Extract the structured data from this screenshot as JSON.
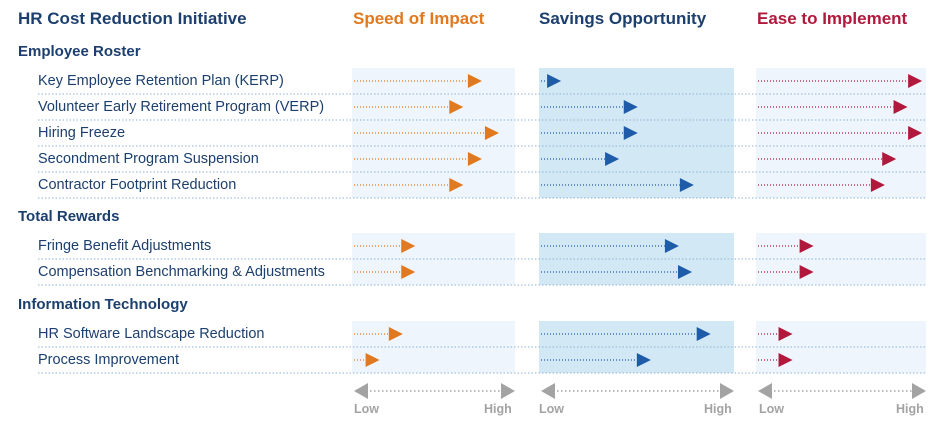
{
  "title": "HR Cost Reduction Initiative",
  "columns": [
    {
      "label": "Speed of Impact",
      "color": "#e0791f"
    },
    {
      "label": "Savings Opportunity",
      "color": "#1e5ba8"
    },
    {
      "label": "Ease to Implement",
      "color": "#b0193c"
    }
  ],
  "axis": {
    "low": "Low",
    "high": "High"
  },
  "chart_data": {
    "type": "scatter",
    "title": "HR Cost Reduction Initiative",
    "scale": [
      0,
      100
    ],
    "series": [
      {
        "name": "Speed of Impact",
        "values": [
          78,
          66,
          89,
          78,
          66,
          35,
          35,
          27,
          12
        ]
      },
      {
        "name": "Savings Opportunity",
        "values": [
          7,
          48,
          48,
          38,
          78,
          70,
          77,
          87,
          55
        ]
      },
      {
        "name": "Ease to Implement",
        "values": [
          97,
          88,
          97,
          81,
          74,
          30,
          30,
          17,
          17
        ]
      }
    ],
    "groups": [
      {
        "name": "Employee Roster",
        "items": [
          "Key Employee Retention Plan (KERP)",
          "Volunteer Early Retirement Program (VERP)",
          "Hiring Freeze",
          "Secondment Program Suspension",
          "Contractor Footprint Reduction"
        ]
      },
      {
        "name": "Total Rewards",
        "items": [
          "Fringe Benefit Adjustments",
          "Compensation Benchmarking & Adjustments"
        ]
      },
      {
        "name": "Information Technology",
        "items": [
          "HR Software Landscape Reduction",
          "Process Improvement"
        ]
      }
    ]
  }
}
